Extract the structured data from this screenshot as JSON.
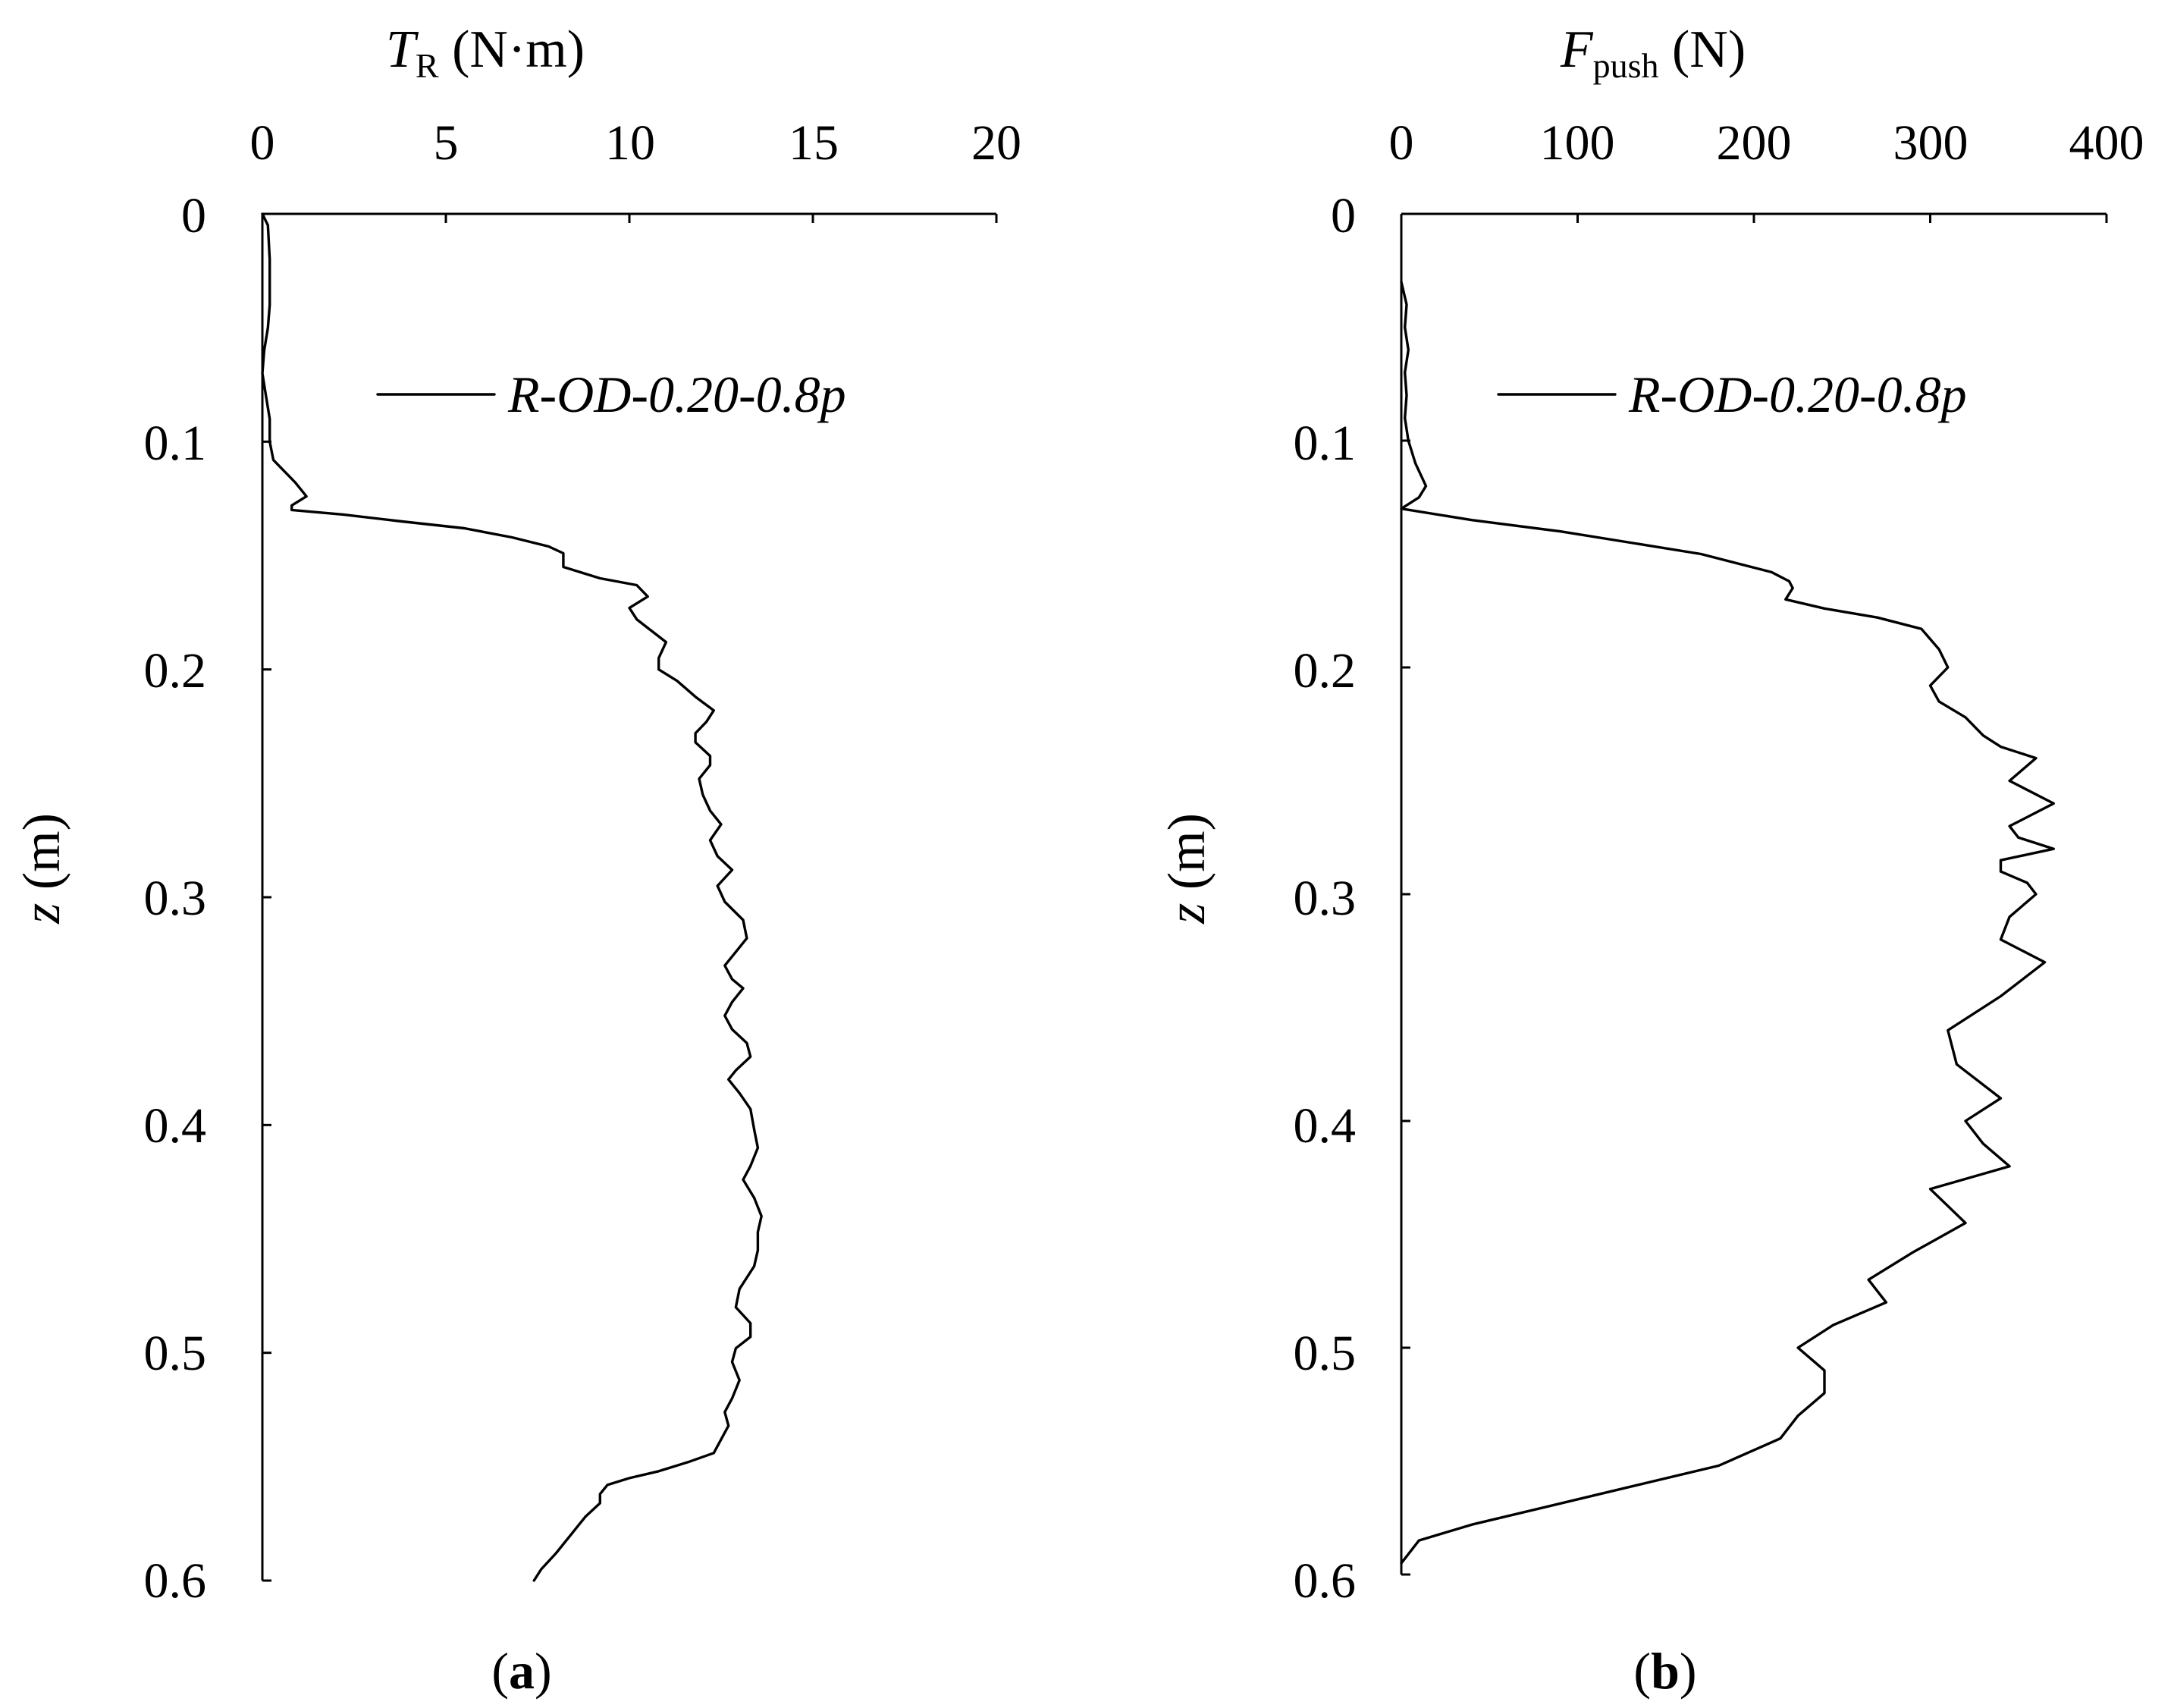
{
  "chart_data": [
    {
      "type": "line",
      "panel_label": "a",
      "xlabel": {
        "main": "T",
        "sub": "R",
        "unit": " (N·m)"
      },
      "ylabel": {
        "main": "z",
        "unit": " (m)"
      },
      "x_axis_position": "top",
      "y_axis_inverted": true,
      "xlim": [
        0,
        20
      ],
      "ylim": [
        0,
        0.6
      ],
      "xticks": [
        "0",
        "5",
        "10",
        "15",
        "20"
      ],
      "yticks": [
        "0",
        "0.1",
        "0.2",
        "0.3",
        "0.4",
        "0.5",
        "0.6"
      ],
      "grid": false,
      "legend_position": "top-right",
      "series": [
        {
          "name": "R-OD-0.20-0.8p",
          "points": [
            [
              0.0,
              0.0
            ],
            [
              0.15,
              0.005
            ],
            [
              0.2,
              0.02
            ],
            [
              0.2,
              0.04
            ],
            [
              0.15,
              0.05
            ],
            [
              0.05,
              0.06
            ],
            [
              0.0,
              0.07
            ],
            [
              0.1,
              0.08
            ],
            [
              0.2,
              0.09
            ],
            [
              0.2,
              0.1
            ],
            [
              0.3,
              0.108
            ],
            [
              0.6,
              0.113
            ],
            [
              0.9,
              0.118
            ],
            [
              1.2,
              0.124
            ],
            [
              0.8,
              0.128
            ],
            [
              0.8,
              0.13
            ],
            [
              2.2,
              0.132
            ],
            [
              3.8,
              0.135
            ],
            [
              5.5,
              0.138
            ],
            [
              6.8,
              0.142
            ],
            [
              7.8,
              0.146
            ],
            [
              8.2,
              0.149
            ],
            [
              8.2,
              0.155
            ],
            [
              9.2,
              0.16
            ],
            [
              10.2,
              0.163
            ],
            [
              10.5,
              0.168
            ],
            [
              10.0,
              0.173
            ],
            [
              10.2,
              0.178
            ],
            [
              10.6,
              0.183
            ],
            [
              11.0,
              0.188
            ],
            [
              10.8,
              0.195
            ],
            [
              10.8,
              0.2
            ],
            [
              11.3,
              0.205
            ],
            [
              11.8,
              0.212
            ],
            [
              12.3,
              0.218
            ],
            [
              12.1,
              0.223
            ],
            [
              11.8,
              0.228
            ],
            [
              11.8,
              0.232
            ],
            [
              12.2,
              0.238
            ],
            [
              12.2,
              0.242
            ],
            [
              11.9,
              0.248
            ],
            [
              12.0,
              0.255
            ],
            [
              12.2,
              0.262
            ],
            [
              12.5,
              0.268
            ],
            [
              12.2,
              0.275
            ],
            [
              12.4,
              0.282
            ],
            [
              12.8,
              0.288
            ],
            [
              12.4,
              0.295
            ],
            [
              12.6,
              0.302
            ],
            [
              13.1,
              0.31
            ],
            [
              13.2,
              0.318
            ],
            [
              12.9,
              0.324
            ],
            [
              12.6,
              0.33
            ],
            [
              12.8,
              0.336
            ],
            [
              13.1,
              0.34
            ],
            [
              12.8,
              0.346
            ],
            [
              12.6,
              0.352
            ],
            [
              12.8,
              0.358
            ],
            [
              13.2,
              0.364
            ],
            [
              13.3,
              0.37
            ],
            [
              12.9,
              0.376
            ],
            [
              12.7,
              0.38
            ],
            [
              13.0,
              0.386
            ],
            [
              13.3,
              0.393
            ],
            [
              13.4,
              0.402
            ],
            [
              13.5,
              0.41
            ],
            [
              13.3,
              0.418
            ],
            [
              13.1,
              0.424
            ],
            [
              13.4,
              0.432
            ],
            [
              13.6,
              0.44
            ],
            [
              13.5,
              0.447
            ],
            [
              13.5,
              0.455
            ],
            [
              13.4,
              0.462
            ],
            [
              13.0,
              0.472
            ],
            [
              12.9,
              0.48
            ],
            [
              13.3,
              0.487
            ],
            [
              13.3,
              0.493
            ],
            [
              12.9,
              0.498
            ],
            [
              12.8,
              0.504
            ],
            [
              13.0,
              0.512
            ],
            [
              12.8,
              0.52
            ],
            [
              12.6,
              0.526
            ],
            [
              12.7,
              0.532
            ],
            [
              12.5,
              0.538
            ],
            [
              12.3,
              0.544
            ],
            [
              11.6,
              0.548
            ],
            [
              10.8,
              0.552
            ],
            [
              10.0,
              0.555
            ],
            [
              9.4,
              0.558
            ],
            [
              9.2,
              0.562
            ],
            [
              9.2,
              0.566
            ],
            [
              8.8,
              0.572
            ],
            [
              8.4,
              0.58
            ],
            [
              8.0,
              0.588
            ],
            [
              7.6,
              0.595
            ],
            [
              7.4,
              0.6
            ]
          ]
        }
      ]
    },
    {
      "type": "line",
      "panel_label": "b",
      "xlabel": {
        "main": "F",
        "sub": "push",
        "unit": " (N)"
      },
      "ylabel": {
        "main": "z",
        "unit": " (m)"
      },
      "x_axis_position": "top",
      "y_axis_inverted": true,
      "xlim": [
        0,
        400
      ],
      "ylim": [
        0,
        0.6
      ],
      "xticks": [
        "0",
        "100",
        "200",
        "300",
        "400"
      ],
      "yticks": [
        "0",
        "0.1",
        "0.2",
        "0.3",
        "0.4",
        "0.5",
        "0.6"
      ],
      "grid": false,
      "legend_position": "top-right",
      "series": [
        {
          "name": "R-OD-0.20-0.8p",
          "points": [
            [
              0,
              0.03
            ],
            [
              3,
              0.04
            ],
            [
              2,
              0.05
            ],
            [
              4,
              0.06
            ],
            [
              2,
              0.07
            ],
            [
              3,
              0.08
            ],
            [
              2,
              0.09
            ],
            [
              4,
              0.1
            ],
            [
              8,
              0.11
            ],
            [
              14,
              0.12
            ],
            [
              10,
              0.125
            ],
            [
              0,
              0.13
            ],
            [
              40,
              0.135
            ],
            [
              90,
              0.14
            ],
            [
              130,
              0.145
            ],
            [
              170,
              0.15
            ],
            [
              210,
              0.158
            ],
            [
              220,
              0.162
            ],
            [
              222,
              0.165
            ],
            [
              218,
              0.17
            ],
            [
              240,
              0.174
            ],
            [
              270,
              0.178
            ],
            [
              295,
              0.183
            ],
            [
              305,
              0.192
            ],
            [
              310,
              0.2
            ],
            [
              300,
              0.208
            ],
            [
              305,
              0.215
            ],
            [
              320,
              0.222
            ],
            [
              330,
              0.23
            ],
            [
              340,
              0.235
            ],
            [
              360,
              0.24
            ],
            [
              345,
              0.25
            ],
            [
              370,
              0.26
            ],
            [
              345,
              0.27
            ],
            [
              350,
              0.275
            ],
            [
              370,
              0.28
            ],
            [
              340,
              0.285
            ],
            [
              340,
              0.29
            ],
            [
              355,
              0.295
            ],
            [
              360,
              0.3
            ],
            [
              345,
              0.31
            ],
            [
              340,
              0.32
            ],
            [
              365,
              0.33
            ],
            [
              340,
              0.345
            ],
            [
              310,
              0.36
            ],
            [
              315,
              0.375
            ],
            [
              340,
              0.39
            ],
            [
              320,
              0.4
            ],
            [
              330,
              0.41
            ],
            [
              345,
              0.42
            ],
            [
              300,
              0.43
            ],
            [
              320,
              0.445
            ],
            [
              290,
              0.458
            ],
            [
              265,
              0.47
            ],
            [
              275,
              0.48
            ],
            [
              245,
              0.49
            ],
            [
              225,
              0.5
            ],
            [
              240,
              0.51
            ],
            [
              240,
              0.52
            ],
            [
              225,
              0.53
            ],
            [
              215,
              0.54
            ],
            [
              180,
              0.552
            ],
            [
              110,
              0.565
            ],
            [
              40,
              0.578
            ],
            [
              10,
              0.585
            ],
            [
              0,
              0.595
            ]
          ]
        }
      ]
    }
  ]
}
